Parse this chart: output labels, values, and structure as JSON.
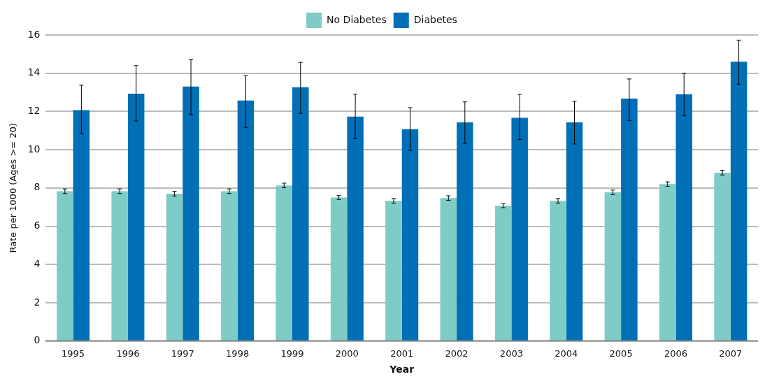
{
  "chart_data": {
    "type": "bar",
    "xlabel": "Year",
    "ylabel": "Rate per 1000 (Ages >= 20)",
    "categories": [
      "1995",
      "1996",
      "1997",
      "1998",
      "1999",
      "2000",
      "2001",
      "2002",
      "2003",
      "2004",
      "2005",
      "2006",
      "2007"
    ],
    "series": [
      {
        "name": "No Diabetes",
        "color": "#7fccc6",
        "values": [
          7.83,
          7.83,
          7.7,
          7.83,
          8.13,
          7.5,
          7.33,
          7.47,
          7.07,
          7.33,
          7.77,
          8.2,
          8.8
        ],
        "errors": [
          0.12,
          0.12,
          0.12,
          0.12,
          0.12,
          0.1,
          0.12,
          0.12,
          0.1,
          0.12,
          0.12,
          0.12,
          0.12
        ]
      },
      {
        "name": "Diabetes",
        "color": "#006fb6",
        "values": [
          12.07,
          12.93,
          13.3,
          12.57,
          13.27,
          11.73,
          11.07,
          11.43,
          11.67,
          11.43,
          12.67,
          12.9,
          14.6
        ],
        "errors": [
          [
            10.83,
            13.37
          ],
          [
            11.5,
            14.4
          ],
          [
            11.83,
            14.7
          ],
          [
            11.17,
            13.87
          ],
          [
            11.9,
            14.57
          ],
          [
            10.57,
            12.9
          ],
          [
            9.97,
            12.2
          ],
          [
            10.33,
            12.5
          ],
          [
            10.53,
            12.9
          ],
          [
            10.3,
            12.53
          ],
          [
            11.53,
            13.7
          ],
          [
            11.77,
            14.0
          ],
          [
            13.43,
            15.73
          ]
        ]
      }
    ],
    "ylim": [
      0,
      16
    ],
    "yticks": [
      0,
      2,
      4,
      6,
      8,
      10,
      12,
      14,
      16
    ],
    "grid": "y",
    "legend": "top"
  }
}
